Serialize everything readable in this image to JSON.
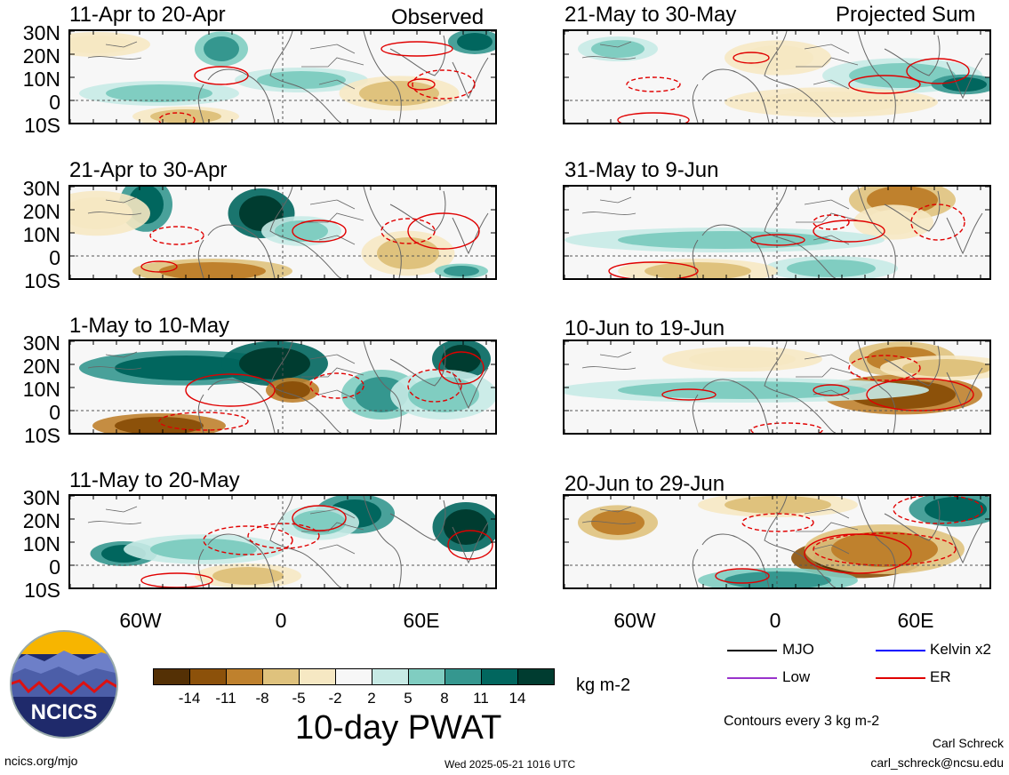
{
  "headers": {
    "left": "Observed",
    "right": "Projected Sum"
  },
  "panels": [
    {
      "title": "11-Apr to 20-Apr"
    },
    {
      "title": "21-Apr to 30-Apr"
    },
    {
      "title": "1-May to 10-May"
    },
    {
      "title": "11-May to 20-May"
    },
    {
      "title": "21-May to 30-May"
    },
    {
      "title": "31-May to 9-Jun"
    },
    {
      "title": "10-Jun to 19-Jun"
    },
    {
      "title": "20-Jun to 29-Jun"
    }
  ],
  "lat_labels": [
    "30N",
    "20N",
    "10N",
    "0",
    "10S"
  ],
  "lon_labels": [
    "60W",
    "0",
    "60E"
  ],
  "colorbar": {
    "title": "10-day PWAT",
    "unit": "kg m-2",
    "ticks": [
      "-14",
      "-11",
      "-8",
      "-5",
      "-2",
      "2",
      "5",
      "8",
      "11",
      "14"
    ],
    "colors": [
      "#543005",
      "#8c510a",
      "#bf812d",
      "#dfc27d",
      "#f6e8c3",
      "#f7f7f7",
      "#c7eae5",
      "#80cdc1",
      "#35978f",
      "#01665e",
      "#003c30"
    ]
  },
  "legend": {
    "items": [
      {
        "label": "MJO",
        "color": "#000000"
      },
      {
        "label": "Kelvin x2",
        "color": "#0000ff"
      },
      {
        "label": "Low",
        "color": "#9933cc"
      },
      {
        "label": "ER",
        "color": "#e00000"
      }
    ],
    "note": "Contours every 3 kg m-2"
  },
  "footer": {
    "site": "ncics.org/mjo",
    "timestamp": "Wed 2025-05-21 1016 UTC",
    "author": "Carl Schreck",
    "email": "carl_schreck@ncsu.edu",
    "logo_text": "NCICS"
  }
}
